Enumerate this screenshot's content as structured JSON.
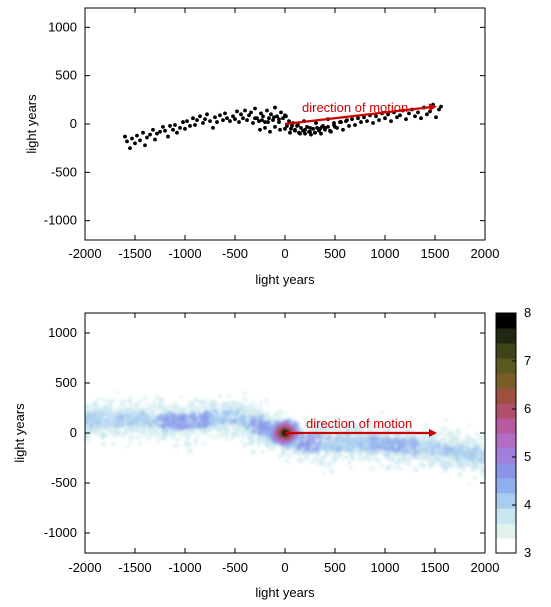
{
  "chart_data": [
    {
      "type": "scatter",
      "xlabel": "light years",
      "ylabel": "light years",
      "xlim": [
        -2000,
        2000
      ],
      "ylim": [
        -1200,
        1200
      ],
      "xticks": [
        -2000,
        -1500,
        -1000,
        -500,
        0,
        500,
        1000,
        1500,
        2000
      ],
      "yticks": [
        -1000,
        -500,
        0,
        500,
        1000
      ],
      "grid": false,
      "marker_color": "#000000",
      "annotation": {
        "text": "direction of motion",
        "color": "#cc0000",
        "arrow_from": [
          0,
          0
        ],
        "arrow_to": [
          1500,
          180
        ]
      },
      "series": [
        {
          "x": [
            -1600,
            -1580,
            -1550,
            -1530,
            -1500,
            -1480,
            -1450,
            -1420,
            -1400,
            -1380,
            -1350,
            -1320,
            -1300,
            -1280,
            -1250,
            -1220,
            -1200,
            -1170,
            -1150,
            -1120,
            -1100,
            -1080,
            -1050,
            -1020,
            -1000,
            -980,
            -950,
            -920,
            -900,
            -880,
            -850,
            -820,
            -800,
            -780,
            -750,
            -720,
            -700,
            -680,
            -650,
            -620,
            -600,
            -580,
            -550,
            -520,
            -500,
            -480,
            -460,
            -440,
            -420,
            -400,
            -380,
            -360,
            -340,
            -320,
            -300,
            -280,
            -260,
            -240,
            -220,
            -200,
            -180,
            -160,
            -140,
            -120,
            -100,
            -80,
            -60,
            -40,
            -20,
            0,
            20,
            40,
            60,
            80,
            100,
            120,
            140,
            160,
            180,
            200,
            220,
            240,
            260,
            280,
            300,
            320,
            340,
            360,
            380,
            400,
            430,
            460,
            490,
            520,
            550,
            580,
            610,
            640,
            670,
            700,
            730,
            760,
            790,
            820,
            850,
            880,
            910,
            940,
            970,
            1000,
            1030,
            1060,
            1090,
            1120,
            1150,
            1180,
            1210,
            1240,
            1270,
            1300,
            1330,
            1360,
            1390,
            1420,
            1450,
            1480,
            1510,
            1540,
            1560,
            -250,
            -200,
            -150,
            -100,
            -50,
            0,
            50,
            100,
            150,
            200,
            250,
            300,
            350,
            400,
            450,
            500,
            -300,
            -230,
            -170,
            -110,
            -60,
            10,
            70,
            130,
            190,
            250,
            310,
            370,
            430,
            490,
            560,
            620
          ],
          "y": [
            -130,
            -180,
            -250,
            -150,
            -200,
            -120,
            -170,
            -90,
            -220,
            -140,
            -110,
            -60,
            -160,
            -100,
            -80,
            -30,
            -70,
            -130,
            -20,
            -60,
            -10,
            -90,
            -40,
            20,
            -50,
            30,
            -20,
            60,
            -10,
            40,
            80,
            10,
            50,
            100,
            30,
            -40,
            70,
            20,
            90,
            40,
            110,
            60,
            30,
            80,
            50,
            130,
            20,
            100,
            60,
            140,
            40,
            90,
            120,
            10,
            160,
            60,
            30,
            110,
            80,
            20,
            140,
            60,
            100,
            40,
            170,
            80,
            20,
            120,
            60,
            90,
            -20,
            30,
            -50,
            10,
            -60,
            -20,
            -90,
            -40,
            -70,
            -100,
            -30,
            -80,
            -110,
            -50,
            -90,
            -40,
            -70,
            -100,
            -20,
            -60,
            -30,
            -80,
            10,
            -40,
            20,
            -60,
            30,
            -20,
            50,
            -10,
            60,
            20,
            70,
            30,
            90,
            10,
            80,
            40,
            110,
            60,
            100,
            30,
            120,
            70,
            90,
            140,
            50,
            110,
            150,
            80,
            120,
            60,
            170,
            100,
            130,
            200,
            70,
            150,
            180,
            -60,
            -40,
            -80,
            -30,
            -60,
            -50,
            -90,
            -70,
            -100,
            -60,
            -80,
            -90,
            -50,
            -40,
            -70,
            -30,
            60,
            40,
            20,
            70,
            50,
            80,
            -20,
            -10,
            30,
            -40,
            10,
            -30,
            50,
            -10,
            20,
            40
          ]
        }
      ]
    },
    {
      "type": "heatmap",
      "xlabel": "light years",
      "ylabel": "light years",
      "xlim": [
        -2000,
        2000
      ],
      "ylim": [
        -1200,
        1200
      ],
      "xticks": [
        -2000,
        -1500,
        -1000,
        -500,
        0,
        500,
        1000,
        1500,
        2000
      ],
      "yticks": [
        -1000,
        -500,
        0,
        500,
        1000
      ],
      "grid": false,
      "colorbar": {
        "range": [
          3,
          8
        ],
        "ticks": [
          3,
          4,
          5,
          6,
          7,
          8
        ],
        "colors": [
          "#ffffff",
          "#dff2ec",
          "#c6e6f0",
          "#a9cdee",
          "#8fb0ec",
          "#8c94e8",
          "#a080dc",
          "#b06ec4",
          "#b85aa0",
          "#b0506a",
          "#9c5040",
          "#7a5c28",
          "#5a5a20",
          "#3e4418",
          "#202814",
          "#000000"
        ]
      },
      "annotation": {
        "text": "direction of motion",
        "color": "#cc0000",
        "arrow_from": [
          0,
          0
        ],
        "arrow_to": [
          1500,
          0
        ]
      }
    }
  ]
}
